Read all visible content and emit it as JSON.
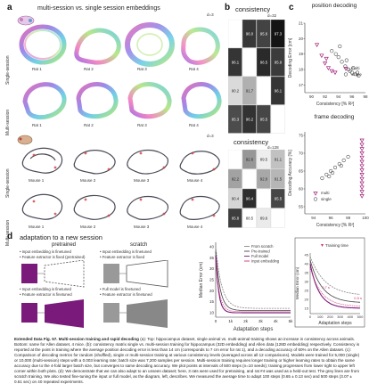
{
  "panel_a": {
    "label": "a",
    "title": "multi-session vs. single session embeddings",
    "rat_dims": "d=3",
    "mouse_dims": "d=3",
    "rows_rat": [
      "Single-session",
      "Multi-session"
    ],
    "rows_mouse": [
      "Single-session",
      "Multi-session"
    ],
    "rats": [
      "Rat 1",
      "Rat 2",
      "Rat 3",
      "Rat 4"
    ],
    "mice": [
      "Mouse 1",
      "Mouse 2",
      "Mouse 3",
      "Mouse 4"
    ],
    "colors": {
      "rainbow_a": "#e040a0",
      "rainbow_b": "#40c0e0",
      "rainbow_c": "#a0e040",
      "mouse_trace": "#2a2a3a",
      "mouse_accent": "#d04040"
    }
  },
  "panel_b": {
    "label": "b",
    "title": "consistency",
    "top_dims": "d=32",
    "bottom_title": "consistency",
    "bottom_dims": "d=128",
    "top_matrix": [
      [
        "",
        "96.0",
        "95.6",
        "97.3"
      ],
      [
        "96.1",
        "",
        "96.5",
        "95.9"
      ],
      [
        "90.2",
        "91.7",
        "",
        "96.1"
      ],
      [
        "95.3",
        "96.2",
        "95.5",
        ""
      ]
    ],
    "bottom_matrix": [
      [
        "",
        "92.6",
        "89.5",
        "91.1"
      ],
      [
        "92.2",
        "",
        "92.0",
        "91.5"
      ],
      [
        "90.4",
        "96.4",
        "",
        "95.5"
      ],
      [
        "95.8",
        "88.5",
        "89.6",
        ""
      ]
    ]
  },
  "panel_c": {
    "label": "c",
    "top": {
      "title": "position decoding",
      "ylabel": "Decoding Error [cm]",
      "xlabel": "Consistency [% R²]",
      "yticks": [
        "17",
        "18",
        "19",
        "20",
        "21"
      ],
      "xticks": [
        "90",
        "92",
        "94",
        "96",
        "98"
      ],
      "legend": [
        "multi",
        "single"
      ]
    },
    "bottom": {
      "title": "frame decoding",
      "ylabel": "Decoding Accuracy [%]",
      "xlabel": "Consistency [% R²]",
      "yticks": [
        "55",
        "60",
        "65",
        "70",
        "75"
      ],
      "xticks": [
        "94",
        "96",
        "98",
        "100"
      ],
      "legend": [
        "multi",
        "single"
      ]
    },
    "colors": {
      "multi": "#a0207a",
      "single": "#888888"
    }
  },
  "panel_d": {
    "label": "d",
    "title": "adaptation to a new session",
    "pretrained_label": "pretrained",
    "scratch_label": "scratch",
    "bullets_top_left": [
      "Input embedding is finetuned",
      "Feature extractor is fixed (pretrained)"
    ],
    "bullets_top_right": [
      "Input embedding is finetuned",
      "Feature extractor is fixed"
    ],
    "bullets_bottom_left": [
      "Input embedding is finetuned",
      "Feature extractor is finetuned"
    ],
    "bullets_bottom_right": [
      "Full model is finetuned",
      "Feature extractor is finetuned"
    ],
    "chart": {
      "ylabel": "Median Error (cm)",
      "xlabel": "Adaptation steps",
      "yticks": [
        "10",
        "15",
        "20",
        "25",
        "30",
        "35",
        "40"
      ],
      "xticks": [
        "0",
        "1k",
        "2k",
        "3k",
        "4k",
        "5k"
      ],
      "legend": [
        "From scratch",
        "Pre-trained",
        "Full model",
        "Input embedding"
      ]
    },
    "inset": {
      "ylabel": "Median Error (cm)",
      "xlabel": "Adaptation steps",
      "legend": "Training time",
      "yticks": [
        "15",
        "20",
        "25",
        "30",
        "35",
        "40",
        "45"
      ],
      "xticks": [
        "0",
        "100",
        "200",
        "300",
        "400",
        "500"
      ],
      "annotations": [
        "0.7 s",
        "0.5 s"
      ]
    },
    "colors": {
      "purple": "#7a1a7a",
      "gray": "#555555",
      "dark": "#333333",
      "pink": "#d03070"
    }
  },
  "caption": {
    "heading": "Extended Data Fig. 57. Multi-session training and rapid decoding",
    "body": " (a): Top: hippocampus dataset, single animal vs. multi-animal training shows an increase in consistency across animals. Bottom: same for Allen dataset, 4 mice. (b): consistency matrix single vs. multi-session training for hippocampus (32D embedding) and Allen data (128D embedding) respectively. Consistency is reported at the point in training where the average position decoding error is less than 14 cm (corresponds to 7 cm error for rat 1), and a decoding accuracy of 60% on the Allen dataset. (c): Comparison of decoding metrics for random (shuffled), single or multi-session training at various consistency levels (averaged across all 12 comparisons). Models were trained for 5,000 (single) or 10,000 (multi-session) steps with a 0.003 learning rate; batch size was 7,200 samples per session. Multi-session training requires longer training or higher learning rates to obtain the same accuracy due to the 4-fold larger batch size, but converges to same decoding accuracy. We plot points at intervals of 500 steps (n=10 seeds); training progresses from lower right to upper left corner within both plots. (d): We demonstrate that we can also adapt to an unseen dataset; here, 3 rats were used for pretraining, and rat #4 was used as a held-out test. The grey lines are from scratch training. We also tested fine-tuning the input or full model, as the diagram, left, describes. We measured the average time to adapt 100 steps (0.65 ± 0.13 sec) and 500 steps (3.07 ± 0.61 sec) on 40 repeated experiments."
  }
}
